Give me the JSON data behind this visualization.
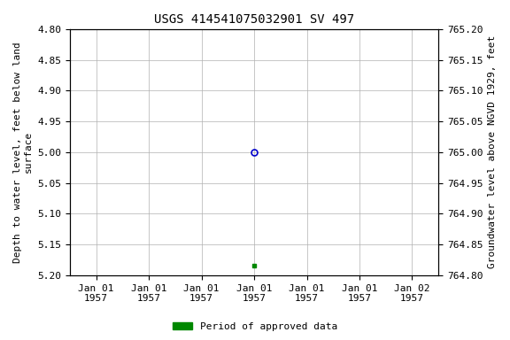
{
  "title": "USGS 414541075032901 SV 497",
  "ylabel_left": "Depth to water level, feet below land\nsurface",
  "ylabel_right": "Groundwater level above NGVD 1929, feet",
  "ylim_left": [
    4.8,
    5.2
  ],
  "ylim_right": [
    764.8,
    765.2
  ],
  "yticks_left": [
    4.8,
    4.85,
    4.9,
    4.95,
    5.0,
    5.05,
    5.1,
    5.15,
    5.2
  ],
  "yticks_right": [
    764.8,
    764.85,
    764.9,
    764.95,
    765.0,
    765.05,
    765.1,
    765.15,
    765.2
  ],
  "xtick_positions": [
    0,
    1,
    2,
    3,
    4,
    5,
    6
  ],
  "xtick_labels": [
    "Jan 01\n1957",
    "Jan 01\n1957",
    "Jan 01\n1957",
    "Jan 01\n1957",
    "Jan 01\n1957",
    "Jan 01\n1957",
    "Jan 02\n1957"
  ],
  "xlim": [
    -0.5,
    6.5
  ],
  "data_point_x_open": 3,
  "data_point_y_open": 5.0,
  "data_point_x_filled": 3,
  "data_point_y_filled": 5.185,
  "open_marker_color": "#0000cc",
  "filled_marker_color": "#008800",
  "grid_color": "#b0b0b0",
  "bg_color": "#ffffff",
  "legend_label": "Period of approved data",
  "legend_color": "#008800",
  "font_family": "monospace",
  "title_fontsize": 10,
  "label_fontsize": 8,
  "tick_fontsize": 8
}
